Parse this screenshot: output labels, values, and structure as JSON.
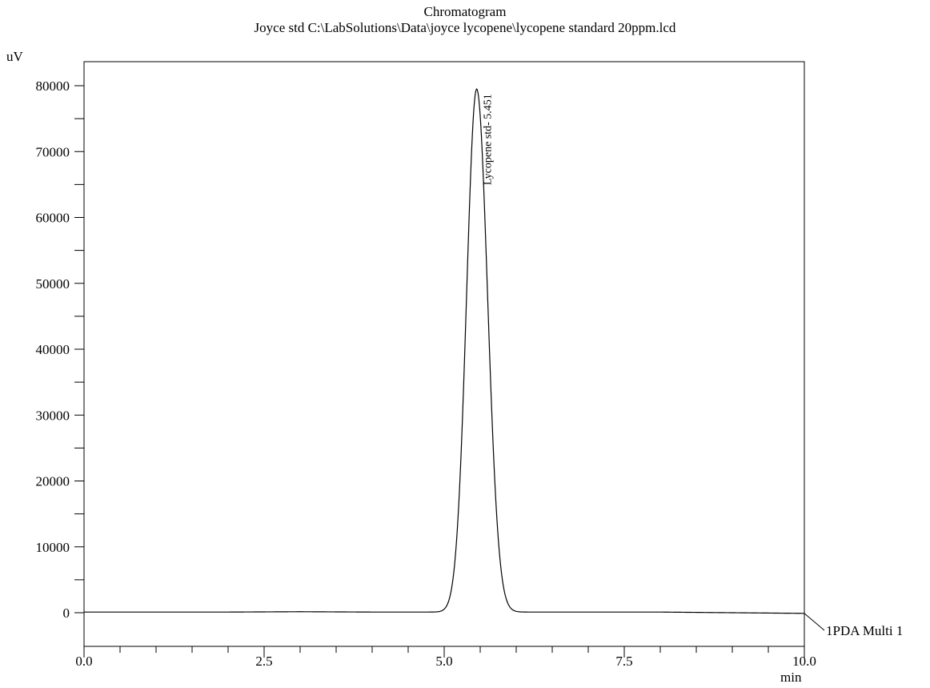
{
  "chart_data": {
    "type": "line",
    "title": "Chromatogram",
    "subtitle": "Joyce std C:\\LabSolutions\\Data\\joyce lycopene\\lycopene standard 20ppm.lcd",
    "xlabel": "min",
    "ylabel": "uV",
    "xlim": [
      0.0,
      10.0
    ],
    "ylim": [
      -5000,
      82000
    ],
    "x_ticks": [
      0.0,
      2.5,
      5.0,
      7.5,
      10.0
    ],
    "x_tick_labels": [
      "0.0",
      "2.5",
      "5.0",
      "7.5",
      "10.0"
    ],
    "x_minor_step": 0.5,
    "y_ticks": [
      0,
      10000,
      20000,
      30000,
      40000,
      50000,
      60000,
      70000,
      80000
    ],
    "y_tick_labels": [
      "0",
      "10000",
      "20000",
      "30000",
      "40000",
      "50000",
      "60000",
      "70000",
      "80000"
    ],
    "y_minor_ticks": [
      5000,
      15000,
      25000,
      35000,
      45000,
      55000,
      65000,
      75000
    ],
    "grid": false,
    "series": [
      {
        "name": "1PDA Multi 1",
        "peak": {
          "retention_time": 5.451,
          "height": 79500,
          "sigma": 0.14,
          "baseline": 100
        },
        "x": [
          0.0,
          1.0,
          2.0,
          3.0,
          4.0,
          4.6,
          5.0,
          5.1,
          5.2,
          5.3,
          5.35,
          5.4,
          5.451,
          5.5,
          5.55,
          5.6,
          5.7,
          5.8,
          5.9,
          6.0,
          6.2,
          7.0,
          8.0,
          9.0,
          10.0
        ],
        "y": [
          100,
          100,
          100,
          150,
          100,
          100,
          1000,
          3000,
          8600,
          26900,
          43100,
          64600,
          79500,
          75000,
          60000,
          44100,
          19800,
          4500,
          1300,
          300,
          100,
          100,
          100,
          0,
          -100
        ]
      }
    ],
    "annotations": [
      {
        "text": "Lycopene std- 5.451",
        "x": 5.451,
        "y": 79500
      }
    ],
    "legend_label": "1PDA Multi 1"
  }
}
